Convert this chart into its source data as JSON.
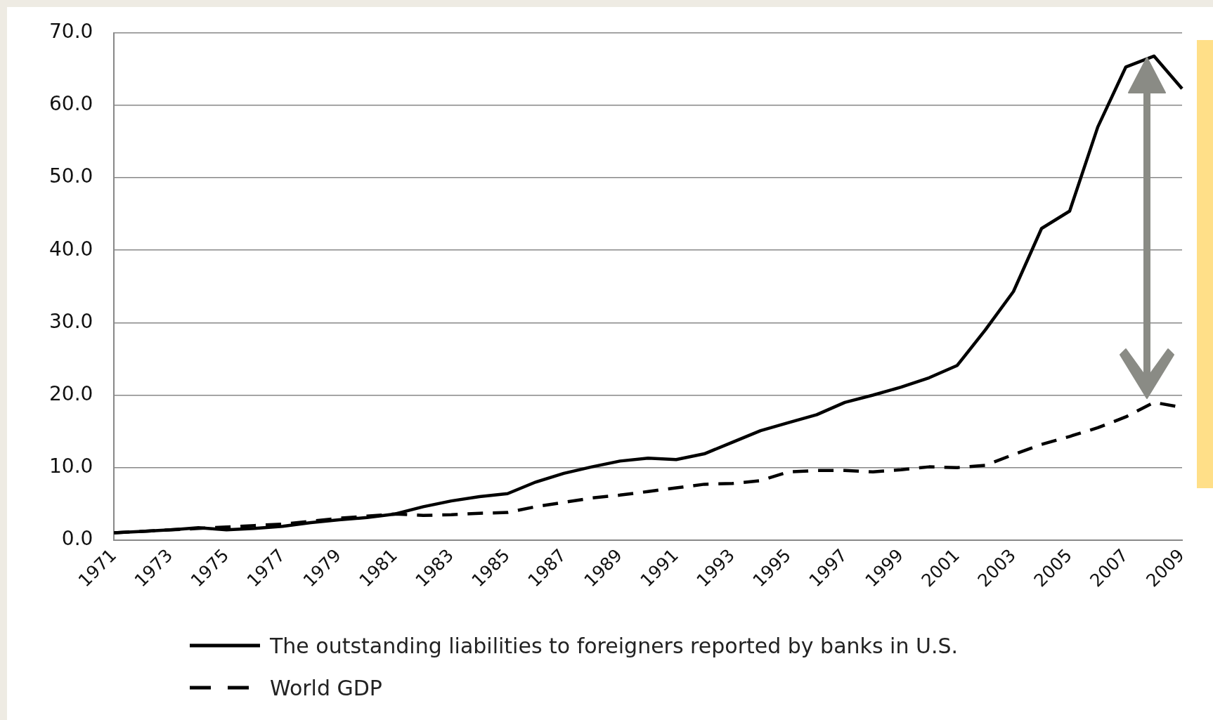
{
  "chart_data": {
    "type": "line",
    "categories": [
      "1971",
      null,
      "1973",
      null,
      "1975",
      null,
      "1977",
      null,
      "1979",
      null,
      "1981",
      null,
      "1983",
      null,
      "1985",
      null,
      "1987",
      null,
      "1989",
      null,
      "1991",
      null,
      "1993",
      null,
      "1995",
      null,
      "1997",
      null,
      "1999",
      null,
      "2001",
      null,
      "2003",
      null,
      "2005",
      null,
      "2007",
      null,
      "2009"
    ],
    "series": [
      {
        "name": "The outstanding liabilities to foreigners reported by banks in U.S.",
        "color": "#000000",
        "line_style": "solid",
        "values": [
          1.0,
          1.2,
          1.4,
          1.7,
          1.4,
          1.6,
          1.9,
          2.4,
          2.8,
          3.1,
          3.6,
          4.6,
          5.4,
          6.0,
          6.4,
          8.0,
          9.2,
          10.1,
          10.9,
          11.3,
          11.1,
          11.9,
          13.5,
          15.1,
          16.2,
          17.3,
          19.0,
          20.0,
          21.1,
          22.4,
          24.1,
          29.0,
          34.3,
          43.0,
          45.4,
          57.0,
          65.3,
          66.8,
          62.3
        ]
      },
      {
        "name": "World GDP",
        "color": "#000000",
        "line_style": "dashed",
        "values": [
          1.0,
          1.2,
          1.4,
          1.6,
          1.8,
          2.0,
          2.2,
          2.6,
          3.0,
          3.3,
          3.6,
          3.4,
          3.5,
          3.7,
          3.8,
          4.6,
          5.2,
          5.8,
          6.2,
          6.7,
          7.2,
          7.7,
          7.8,
          8.2,
          9.4,
          9.6,
          9.6,
          9.4,
          9.7,
          10.1,
          10.0,
          10.3,
          11.8,
          13.2,
          14.3,
          15.5,
          17.0,
          19.0,
          18.3
        ]
      }
    ],
    "ylim": [
      0,
      70
    ],
    "yticks": [
      {
        "value": 0,
        "label": "0.0"
      },
      {
        "value": 10,
        "label": "10.0"
      },
      {
        "value": 20,
        "label": "20.0"
      },
      {
        "value": 30,
        "label": "30.0"
      },
      {
        "value": 40,
        "label": "40.0"
      },
      {
        "value": 50,
        "label": "50.0"
      },
      {
        "value": 60,
        "label": "60.0"
      },
      {
        "value": 70,
        "label": "70.0"
      }
    ],
    "grid": "y",
    "legend": "bottom",
    "marker": "none"
  }
}
